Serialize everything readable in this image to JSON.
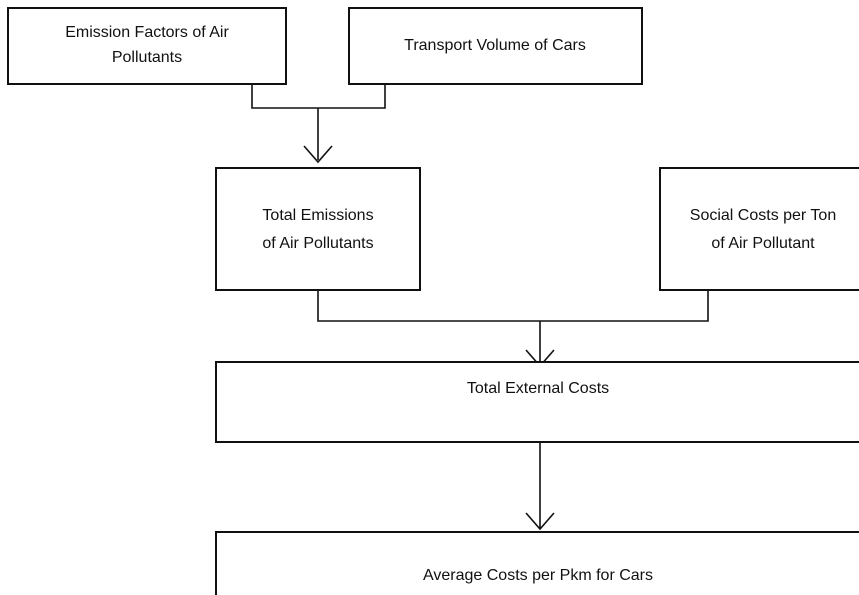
{
  "nodes": [
    {
      "lines": [
        "Emission Factors of Air",
        "Pollutants"
      ]
    },
    {
      "lines": [
        "Transport Volume of Cars"
      ]
    },
    {
      "lines": [
        "Total Emissions",
        "of Air Pollutants"
      ]
    },
    {
      "lines": [
        "Social Costs per Ton",
        "of Air Pollutant"
      ]
    },
    {
      "lines": [
        "Total External Costs"
      ]
    },
    {
      "lines": [
        "Average Costs per Pkm for Cars"
      ]
    }
  ]
}
